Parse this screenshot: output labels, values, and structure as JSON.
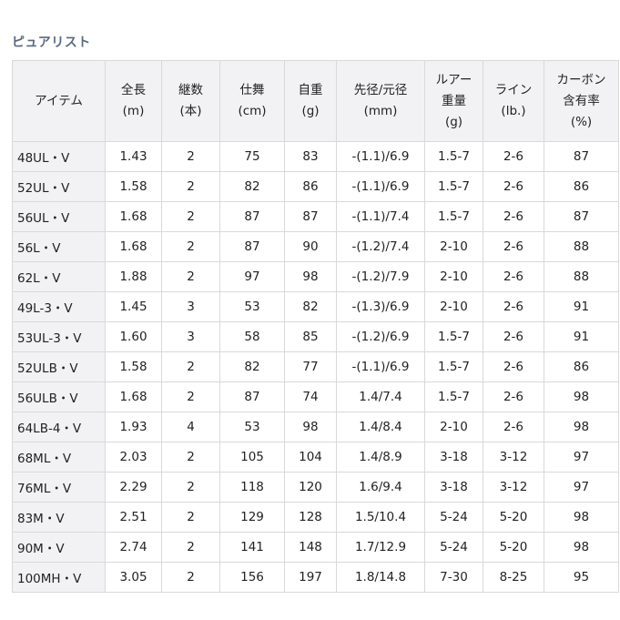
{
  "title": "ピュアリスト",
  "table": {
    "headers": [
      [
        "アイテム"
      ],
      [
        "全長",
        "(m)"
      ],
      [
        "継数",
        "(本)"
      ],
      [
        "仕舞",
        "(cm)"
      ],
      [
        "自重",
        "(g)"
      ],
      [
        "先径/元径",
        "(mm)"
      ],
      [
        "ルアー",
        "重量",
        "(g)"
      ],
      [
        "ライン",
        "(lb.)"
      ],
      [
        "カーボン",
        "含有率",
        "(%)"
      ]
    ],
    "rows": [
      [
        "48UL・V",
        "1.43",
        "2",
        "75",
        "83",
        "-(1.1)/6.9",
        "1.5-7",
        "2-6",
        "87"
      ],
      [
        "52UL・V",
        "1.58",
        "2",
        "82",
        "86",
        "-(1.1)/6.9",
        "1.5-7",
        "2-6",
        "86"
      ],
      [
        "56UL・V",
        "1.68",
        "2",
        "87",
        "87",
        "-(1.1)/7.4",
        "1.5-7",
        "2-6",
        "87"
      ],
      [
        "56L・V",
        "1.68",
        "2",
        "87",
        "90",
        "-(1.2)/7.4",
        "2-10",
        "2-6",
        "88"
      ],
      [
        "62L・V",
        "1.88",
        "2",
        "97",
        "98",
        "-(1.2)/7.9",
        "2-10",
        "2-6",
        "88"
      ],
      [
        "49L-3・V",
        "1.45",
        "3",
        "53",
        "82",
        "-(1.3)/6.9",
        "2-10",
        "2-6",
        "91"
      ],
      [
        "53UL-3・V",
        "1.60",
        "3",
        "58",
        "85",
        "-(1.2)/6.9",
        "1.5-7",
        "2-6",
        "91"
      ],
      [
        "52ULB・V",
        "1.58",
        "2",
        "82",
        "77",
        "-(1.1)/6.9",
        "1.5-7",
        "2-6",
        "86"
      ],
      [
        "56ULB・V",
        "1.68",
        "2",
        "87",
        "74",
        "1.4/7.4",
        "1.5-7",
        "2-6",
        "98"
      ],
      [
        "64LB-4・V",
        "1.93",
        "4",
        "53",
        "98",
        "1.4/8.4",
        "2-10",
        "2-6",
        "98"
      ],
      [
        "68ML・V",
        "2.03",
        "2",
        "105",
        "104",
        "1.4/8.9",
        "3-18",
        "3-12",
        "97"
      ],
      [
        "76ML・V",
        "2.29",
        "2",
        "118",
        "120",
        "1.6/9.4",
        "3-18",
        "3-12",
        "97"
      ],
      [
        "83M・V",
        "2.51",
        "2",
        "129",
        "128",
        "1.5/10.4",
        "5-24",
        "5-20",
        "98"
      ],
      [
        "90M・V",
        "2.74",
        "2",
        "141",
        "148",
        "1.7/12.9",
        "5-24",
        "5-20",
        "98"
      ],
      [
        "100MH・V",
        "3.05",
        "2",
        "156",
        "197",
        "1.8/14.8",
        "7-30",
        "8-25",
        "95"
      ]
    ]
  }
}
